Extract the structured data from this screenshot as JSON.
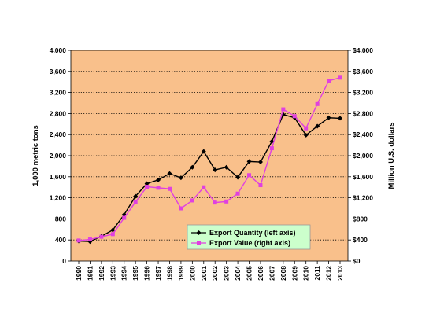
{
  "chart_data": {
    "type": "line",
    "x": [
      "1990",
      "1991",
      "1992",
      "1993",
      "1994",
      "1995",
      "1996",
      "1997",
      "1998",
      "1999",
      "2000",
      "2001",
      "2002",
      "2003",
      "2004",
      "2005",
      "2006",
      "2007",
      "2008",
      "2009",
      "2010",
      "2011",
      "2012",
      "2013"
    ],
    "series": [
      {
        "name": "Export Quantity (left axis)",
        "axis": "left",
        "color": "#000000",
        "marker": "diamond",
        "values": [
          380,
          370,
          470,
          590,
          880,
          1230,
          1470,
          1540,
          1660,
          1580,
          1780,
          2080,
          1730,
          1780,
          1590,
          1890,
          1880,
          2270,
          2780,
          2720,
          2390,
          2560,
          2720,
          2710
        ]
      },
      {
        "name": "Export Value (right axis)",
        "axis": "right",
        "color": "#e040e0",
        "marker": "square",
        "values": [
          390,
          410,
          460,
          510,
          820,
          1120,
          1410,
          1390,
          1370,
          1000,
          1150,
          1400,
          1110,
          1130,
          1280,
          1630,
          1440,
          2140,
          2880,
          2750,
          2520,
          2980,
          3420,
          3480
        ]
      }
    ],
    "ylabel_left": "1,000 metric tons",
    "ylabel_right": "Million U.S. dollars",
    "ylim_left": [
      0,
      4000
    ],
    "ylim_right": [
      0,
      4000
    ],
    "yticks_left": [
      "0",
      "400",
      "800",
      "1,200",
      "1,600",
      "2,000",
      "2,400",
      "2,800",
      "3,200",
      "3,600",
      "4,000"
    ],
    "yticks_right": [
      "$0",
      "$400",
      "$800",
      "$1,200",
      "$1,600",
      "$2,000",
      "$2,400",
      "$2,800",
      "$3,200",
      "$3,600",
      "$4,000"
    ],
    "grid": "horizontal dotted",
    "legend_position": "lower-right",
    "plot_background": "#f9c08b",
    "legend_background": "#ccffcc"
  }
}
